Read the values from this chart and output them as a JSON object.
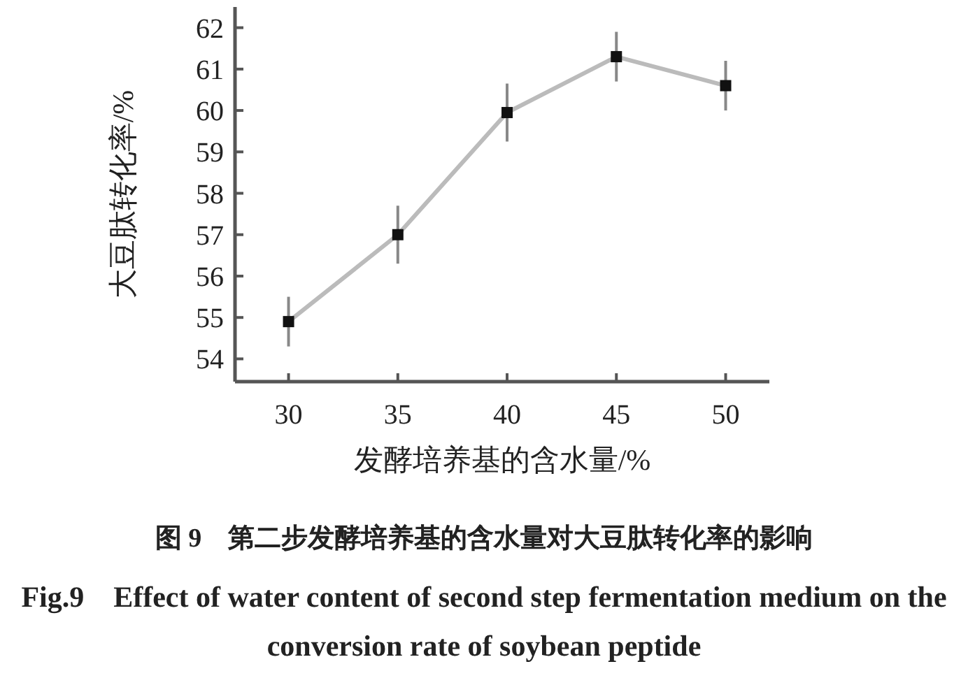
{
  "chart_data": {
    "type": "line",
    "xlabel": "发酵培养基的含水量/%",
    "ylabel": "大豆肽转化率/%",
    "x": [
      30,
      35,
      40,
      45,
      50
    ],
    "series": [
      {
        "color": "#bbbbbb",
        "values": [
          54.9,
          57.0,
          59.95,
          61.3,
          60.6
        ],
        "errors": [
          0.6,
          0.7,
          0.7,
          0.6,
          0.6
        ]
      }
    ],
    "marker": "square",
    "xlim": [
      27.55,
      52
    ],
    "ylim": [
      53.45,
      62.5
    ],
    "xticks": [
      30,
      35,
      40,
      45,
      50
    ],
    "yticks": [
      54,
      55,
      56,
      57,
      58,
      59,
      60,
      61,
      62
    ],
    "grid": false,
    "annotations": [
      "图 9　第二步发酵培养基的含水量对大豆肽转化率的影响",
      "Fig.9　Effect of water content of second step fermentation medium on the conversion rate of soybean peptide"
    ]
  }
}
